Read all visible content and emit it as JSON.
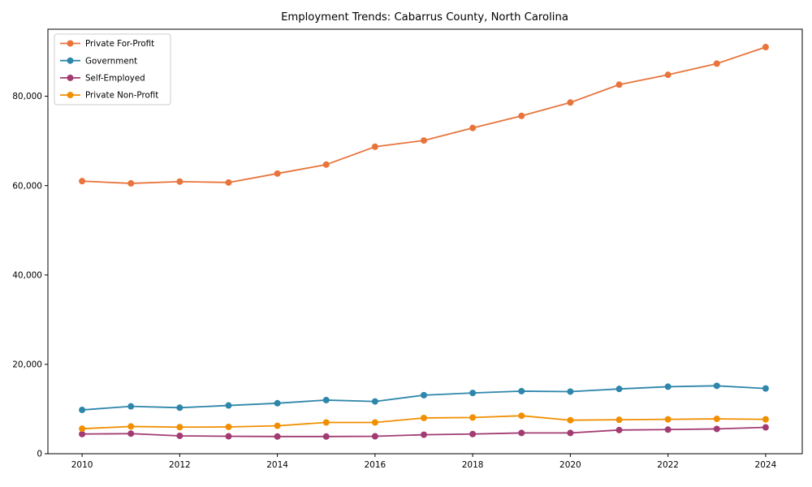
{
  "window": {
    "background_color": "#ffffff",
    "text_color": "#000000",
    "spine_color": "#000000",
    "legend_border_color": "#cccccc"
  },
  "chart_data": {
    "type": "line",
    "title": "Employment Trends: Cabarrus County, North Carolina",
    "xlabel": "",
    "ylabel": "",
    "x": [
      2010,
      2011,
      2012,
      2013,
      2014,
      2015,
      2016,
      2017,
      2018,
      2019,
      2020,
      2021,
      2022,
      2023,
      2024
    ],
    "xticks": [
      2010,
      2012,
      2014,
      2016,
      2018,
      2020,
      2022,
      2024
    ],
    "yticks": [
      0,
      20000,
      40000,
      60000,
      80000
    ],
    "xlim": [
      2009.3,
      2024.75
    ],
    "ylim": [
      0,
      95000
    ],
    "grid": false,
    "legend": {
      "position": "upper-left",
      "entries": [
        "Private For-Profit",
        "Government",
        "Self-Employed",
        "Private Non-Profit"
      ]
    },
    "series": [
      {
        "name": "Private For-Profit",
        "color": "#E8743B",
        "marker": "circle",
        "values": [
          61000,
          60500,
          60900,
          60700,
          62700,
          64700,
          68700,
          70100,
          72900,
          75600,
          78600,
          82600,
          84800,
          87300,
          91000
        ]
      },
      {
        "name": "Government",
        "color": "#2E86AB",
        "marker": "circle",
        "values": [
          9800,
          10600,
          10300,
          10800,
          11300,
          12000,
          11700,
          13100,
          13600,
          14000,
          13900,
          14500,
          15000,
          15200,
          14600
        ]
      },
      {
        "name": "Self-Employed",
        "color": "#A23B72",
        "marker": "circle",
        "values": [
          4400,
          4500,
          4000,
          3900,
          3850,
          3850,
          3900,
          4250,
          4400,
          4650,
          4650,
          5300,
          5400,
          5550,
          5900
        ]
      },
      {
        "name": "Private Non-Profit",
        "color": "#F18F01",
        "marker": "circle",
        "values": [
          5600,
          6100,
          5950,
          6000,
          6250,
          7000,
          7000,
          8000,
          8100,
          8500,
          7500,
          7600,
          7700,
          7800,
          7700
        ]
      }
    ]
  }
}
